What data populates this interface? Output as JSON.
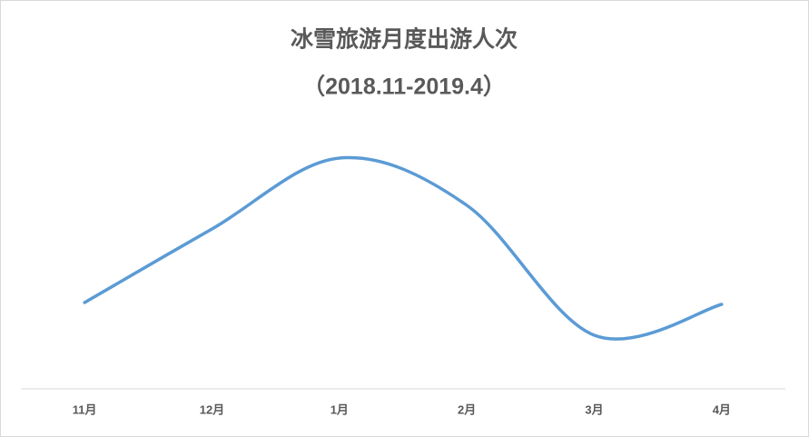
{
  "chart_data": {
    "type": "line",
    "title": "冰雪旅游月度出游人次",
    "subtitle": "（2018.11-2019.4）",
    "categories": [
      "11月",
      "12月",
      "1月",
      "2月",
      "3月",
      "4月"
    ],
    "values": [
      95,
      176,
      254,
      202,
      59,
      93
    ],
    "color": "#5b9bd5",
    "smooth": true,
    "ylim": [
      0,
      300
    ]
  }
}
